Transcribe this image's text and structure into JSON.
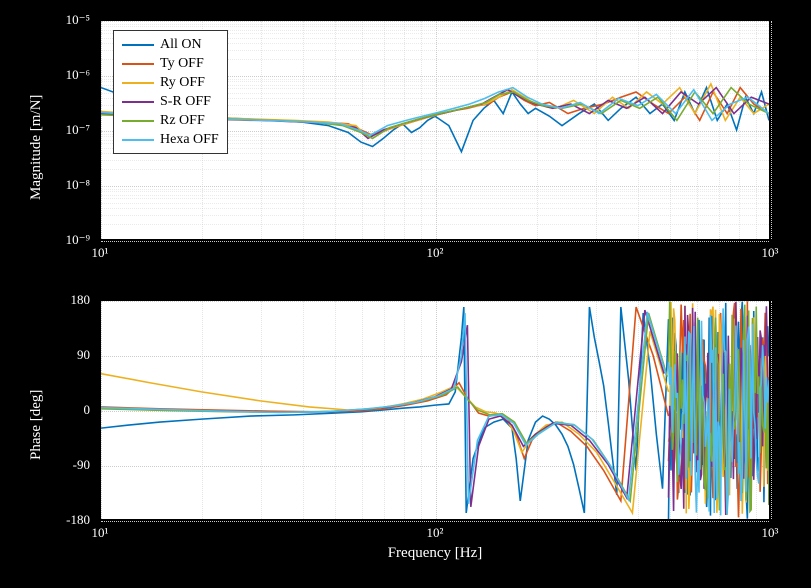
{
  "xlabel": "Frequency [Hz]",
  "chart1": {
    "ylabel": "Magnitude [m/N]",
    "type": "line",
    "xscale": "log",
    "yscale": "log",
    "xlim": [
      10,
      1000
    ],
    "ylim": [
      1e-09,
      1e-05
    ],
    "yticks": [
      1e-09,
      1e-08,
      1e-07,
      1e-06,
      1e-05
    ],
    "ytick_labels": [
      "10⁻⁹",
      "10⁻⁸",
      "10⁻⁷",
      "10⁻⁶",
      "10⁻⁵"
    ],
    "xticks": [
      10,
      100,
      1000
    ],
    "xtick_labels": [
      "10¹",
      "10²",
      "10³"
    ],
    "minor_xticks": [
      20,
      30,
      40,
      50,
      60,
      70,
      80,
      90,
      200,
      300,
      400,
      500,
      600,
      700,
      800,
      900
    ],
    "background_color": "#ffffff",
    "grid_color": "#cccccc",
    "line_width": 1.6,
    "series": [
      {
        "name": "All ON",
        "color": "#0072bd",
        "x": [
          10,
          12,
          15,
          18,
          22,
          27,
          33,
          40,
          48,
          55,
          60,
          65,
          70,
          75,
          80,
          85,
          90,
          95,
          100,
          110,
          120,
          130,
          140,
          150,
          160,
          170,
          180,
          190,
          200,
          220,
          240,
          270,
          300,
          330,
          360,
          400,
          440,
          480,
          520,
          560,
          600,
          650,
          700,
          750,
          800,
          850,
          900,
          950,
          1000
        ],
        "y": [
          6e-07,
          4e-07,
          2.5e-07,
          2e-07,
          1.7e-07,
          1.6e-07,
          1.5e-07,
          1.4e-07,
          1.2e-07,
          9e-08,
          6e-08,
          5e-08,
          7e-08,
          1e-07,
          1.3e-07,
          9e-08,
          1.1e-07,
          1.5e-07,
          1.8e-07,
          1.2e-07,
          4e-08,
          1.5e-07,
          2.5e-07,
          3.5e-07,
          2e-07,
          5e-07,
          3e-07,
          2e-07,
          2.5e-07,
          1.8e-07,
          1.2e-07,
          2e-07,
          3e-07,
          1.5e-07,
          2.5e-07,
          4e-07,
          2e-07,
          3e-07,
          1.5e-07,
          5e-07,
          2e-07,
          6e-07,
          1.5e-07,
          3e-07,
          1e-07,
          4e-07,
          2e-07,
          5e-07,
          1.5e-07
        ]
      },
      {
        "name": "Ty OFF",
        "color": "#d95319",
        "x": [
          10,
          15,
          20,
          28,
          35,
          45,
          55,
          60,
          65,
          75,
          85,
          95,
          105,
          115,
          125,
          135,
          145,
          155,
          170,
          185,
          200,
          220,
          250,
          280,
          320,
          360,
          400,
          450,
          500,
          560,
          620,
          680,
          750,
          820,
          900,
          1000
        ],
        "y": [
          2e-07,
          1.8e-07,
          1.6e-07,
          1.5e-07,
          1.5e-07,
          1.4e-07,
          1.3e-07,
          1e-07,
          8e-08,
          1.1e-07,
          1.4e-07,
          1.7e-07,
          2e-07,
          2.3e-07,
          2.5e-07,
          2.8e-07,
          3e-07,
          4e-07,
          5e-07,
          3.5e-07,
          2.8e-07,
          3.2e-07,
          2e-07,
          2.5e-07,
          3e-07,
          4e-07,
          5e-07,
          3e-07,
          2e-07,
          4e-07,
          1.5e-07,
          5e-07,
          2e-07,
          6e-07,
          3e-07,
          2e-07
        ]
      },
      {
        "name": "Ry OFF",
        "color": "#edb120",
        "x": [
          10,
          14,
          20,
          28,
          38,
          48,
          58,
          62,
          68,
          78,
          88,
          98,
          108,
          118,
          130,
          142,
          155,
          170,
          185,
          200,
          230,
          260,
          300,
          340,
          380,
          430,
          480,
          540,
          600,
          670,
          740,
          820,
          900,
          1000
        ],
        "y": [
          2.2e-07,
          1.9e-07,
          1.7e-07,
          1.6e-07,
          1.5e-07,
          1.4e-07,
          1.2e-07,
          8e-08,
          9e-08,
          1.2e-07,
          1.5e-07,
          1.8e-07,
          2.1e-07,
          2.4e-07,
          2.7e-07,
          3e-07,
          4e-07,
          5.5e-07,
          4e-07,
          3e-07,
          2.5e-07,
          3.5e-07,
          2e-07,
          4e-07,
          2.5e-07,
          5e-07,
          3e-07,
          6e-07,
          2e-07,
          7e-07,
          1.5e-07,
          4e-07,
          2e-07,
          3e-07
        ]
      },
      {
        "name": "S-R OFF",
        "color": "#7e2f8e",
        "x": [
          10,
          15,
          22,
          30,
          40,
          50,
          58,
          63,
          70,
          80,
          90,
          100,
          112,
          125,
          138,
          150,
          165,
          180,
          200,
          225,
          255,
          290,
          330,
          375,
          425,
          480,
          545,
          615,
          695,
          785,
          885,
          1000
        ],
        "y": [
          2e-07,
          1.8e-07,
          1.6e-07,
          1.5e-07,
          1.4e-07,
          1.3e-07,
          1.1e-07,
          7e-08,
          1e-07,
          1.3e-07,
          1.6e-07,
          1.9e-07,
          2.2e-07,
          2.6e-07,
          3e-07,
          4e-07,
          5.5e-07,
          4e-07,
          3e-07,
          2.5e-07,
          3e-07,
          2e-07,
          3.5e-07,
          2.5e-07,
          4e-07,
          2e-07,
          5e-07,
          3e-07,
          6e-07,
          2e-07,
          4e-07,
          3e-07
        ]
      },
      {
        "name": "Rz OFF",
        "color": "#77ac30",
        "x": [
          10,
          16,
          24,
          33,
          43,
          53,
          60,
          65,
          73,
          83,
          93,
          103,
          115,
          128,
          142,
          156,
          172,
          190,
          210,
          240,
          275,
          315,
          360,
          410,
          465,
          530,
          600,
          680,
          770,
          870,
          1000
        ],
        "y": [
          1.9e-07,
          1.7e-07,
          1.6e-07,
          1.5e-07,
          1.4e-07,
          1.2e-07,
          9e-08,
          7e-08,
          1.1e-07,
          1.4e-07,
          1.7e-07,
          2e-07,
          2.3e-07,
          2.7e-07,
          3.2e-07,
          4.5e-07,
          5e-07,
          3.5e-07,
          2.8e-07,
          2.5e-07,
          3e-07,
          2e-07,
          3.5e-07,
          2.5e-07,
          4e-07,
          1.5e-07,
          5e-07,
          2e-07,
          6e-07,
          3e-07,
          2e-07
        ]
      },
      {
        "name": "Hexa OFF",
        "color": "#4dbeee",
        "x": [
          10,
          15,
          22,
          31,
          42,
          52,
          59,
          64,
          72,
          82,
          92,
          102,
          114,
          127,
          141,
          155,
          171,
          189,
          209,
          238,
          272,
          310,
          355,
          405,
          460,
          525,
          595,
          675,
          765,
          865,
          1000
        ],
        "y": [
          2.1e-07,
          1.8e-07,
          1.6e-07,
          1.5e-07,
          1.4e-07,
          1.3e-07,
          1e-07,
          8e-08,
          1.2e-07,
          1.5e-07,
          1.8e-07,
          2.1e-07,
          2.5e-07,
          3e-07,
          3.8e-07,
          5e-07,
          6e-07,
          4e-07,
          3e-07,
          2.5e-07,
          3.2e-07,
          2e-07,
          3.8e-07,
          2.8e-07,
          4.5e-07,
          2e-07,
          5.5e-07,
          1.5e-07,
          3e-07,
          4e-07,
          2e-07
        ]
      }
    ]
  },
  "chart2": {
    "ylabel": "Phase [deg]",
    "type": "line",
    "xscale": "log",
    "yscale": "linear",
    "xlim": [
      10,
      1000
    ],
    "ylim": [
      -180,
      180
    ],
    "yticks": [
      -180,
      -90,
      0,
      90,
      180
    ],
    "ytick_labels": [
      "-180",
      "-90",
      "0",
      "90",
      "180"
    ],
    "xticks": [
      10,
      100,
      1000
    ],
    "xtick_labels": [
      "10¹",
      "10²",
      "10³"
    ],
    "minor_xticks": [
      20,
      30,
      40,
      50,
      60,
      70,
      80,
      90,
      200,
      300,
      400,
      500,
      600,
      700,
      800,
      900
    ],
    "background_color": "#ffffff",
    "grid_color": "#cccccc",
    "line_width": 1.6,
    "series": [
      {
        "name": "All ON",
        "color": "#0072bd",
        "x": [
          10,
          12,
          15,
          20,
          28,
          38,
          50,
          60,
          70,
          80,
          90,
          100,
          110,
          115,
          120,
          122,
          124,
          130,
          140,
          150,
          160,
          170,
          175,
          180,
          190,
          200,
          210,
          220,
          230,
          240,
          250,
          260,
          270,
          280,
          290,
          300,
          310,
          320,
          330,
          340,
          350,
          360,
          370,
          380,
          390,
          400,
          420,
          440,
          460,
          480,
          500
        ],
        "y": [
          -30,
          -25,
          -20,
          -15,
          -10,
          -8,
          -5,
          -3,
          0,
          3,
          5,
          8,
          10,
          30,
          120,
          170,
          -170,
          -80,
          -30,
          -20,
          -15,
          -30,
          -80,
          -150,
          -50,
          -20,
          -10,
          -15,
          -25,
          -40,
          -60,
          -90,
          -130,
          -170,
          170,
          120,
          80,
          40,
          -20,
          -80,
          -140,
          170,
          110,
          50,
          -30,
          -100,
          160,
          70,
          -40,
          -130,
          150
        ]
      },
      {
        "name": "Ty OFF",
        "color": "#d95319",
        "x": [
          10,
          15,
          22,
          32,
          45,
          58,
          70,
          82,
          95,
          108,
          118,
          125,
          135,
          145,
          155,
          165,
          175,
          185,
          195,
          210,
          230,
          255,
          285,
          320,
          360,
          400,
          450,
          500
        ],
        "y": [
          5,
          2,
          0,
          -2,
          -3,
          -2,
          2,
          8,
          15,
          25,
          45,
          20,
          -5,
          -10,
          -8,
          -15,
          -40,
          -80,
          -50,
          -30,
          -20,
          -35,
          -60,
          -100,
          -150,
          170,
          90,
          -10
        ]
      },
      {
        "name": "Ry OFF",
        "color": "#edb120",
        "x": [
          10,
          14,
          20,
          30,
          42,
          55,
          68,
          80,
          92,
          105,
          115,
          122,
          132,
          142,
          152,
          162,
          172,
          182,
          195,
          215,
          240,
          270,
          305,
          345,
          390,
          440,
          500
        ],
        "y": [
          60,
          45,
          30,
          15,
          5,
          0,
          3,
          10,
          18,
          30,
          40,
          25,
          5,
          -3,
          -5,
          -12,
          -35,
          -70,
          -45,
          -25,
          -20,
          -40,
          -70,
          -120,
          -170,
          130,
          30
        ]
      },
      {
        "name": "S-R OFF",
        "color": "#7e2f8e",
        "x": [
          10,
          15,
          23,
          34,
          47,
          60,
          73,
          86,
          100,
          112,
          120,
          125,
          128,
          135,
          145,
          157,
          170,
          184,
          200,
          225,
          255,
          290,
          330,
          375,
          425,
          485
        ],
        "y": [
          3,
          0,
          -2,
          -4,
          -3,
          0,
          5,
          12,
          22,
          35,
          80,
          140,
          -160,
          -60,
          -15,
          -10,
          -25,
          -60,
          -40,
          -22,
          -25,
          -50,
          -90,
          -145,
          165,
          60
        ]
      },
      {
        "name": "Rz OFF",
        "color": "#77ac30",
        "x": [
          10,
          16,
          25,
          36,
          50,
          64,
          78,
          92,
          106,
          117,
          124,
          134,
          146,
          159,
          173,
          188,
          205,
          232,
          262,
          298,
          338,
          384,
          436,
          496
        ],
        "y": [
          2,
          -1,
          -3,
          -4,
          -2,
          2,
          8,
          15,
          25,
          38,
          20,
          0,
          -8,
          -6,
          -20,
          -55,
          -38,
          -20,
          -25,
          -50,
          -95,
          -150,
          160,
          55
        ]
      },
      {
        "name": "Hexa OFF",
        "color": "#4dbeee",
        "x": [
          10,
          15,
          23,
          33,
          46,
          60,
          74,
          88,
          102,
          114,
          120,
          123,
          126,
          134,
          145,
          158,
          172,
          187,
          204,
          230,
          260,
          295,
          335,
          380,
          432,
          492
        ],
        "y": [
          4,
          1,
          -2,
          -4,
          -3,
          1,
          6,
          13,
          23,
          36,
          90,
          160,
          -155,
          -50,
          -10,
          -8,
          -22,
          -58,
          -40,
          -21,
          -24,
          -48,
          -92,
          -148,
          162,
          58
        ]
      }
    ],
    "noise_series": [
      {
        "name": "All ON",
        "color": "#0072bd"
      },
      {
        "name": "Ty OFF",
        "color": "#d95319"
      },
      {
        "name": "Ry OFF",
        "color": "#edb120"
      },
      {
        "name": "S-R OFF",
        "color": "#7e2f8e"
      },
      {
        "name": "Rz OFF",
        "color": "#77ac30"
      },
      {
        "name": "Hexa OFF",
        "color": "#4dbeee"
      }
    ],
    "noise_x_range": [
      500,
      1000
    ],
    "noise_points": 80
  },
  "legend": {
    "items": [
      {
        "label": "All ON",
        "color": "#0072bd"
      },
      {
        "label": "Ty OFF",
        "color": "#d95319"
      },
      {
        "label": "Ry OFF",
        "color": "#edb120"
      },
      {
        "label": "S-R OFF",
        "color": "#7e2f8e"
      },
      {
        "label": "Rz OFF",
        "color": "#77ac30"
      },
      {
        "label": "Hexa OFF",
        "color": "#4dbeee"
      }
    ]
  }
}
